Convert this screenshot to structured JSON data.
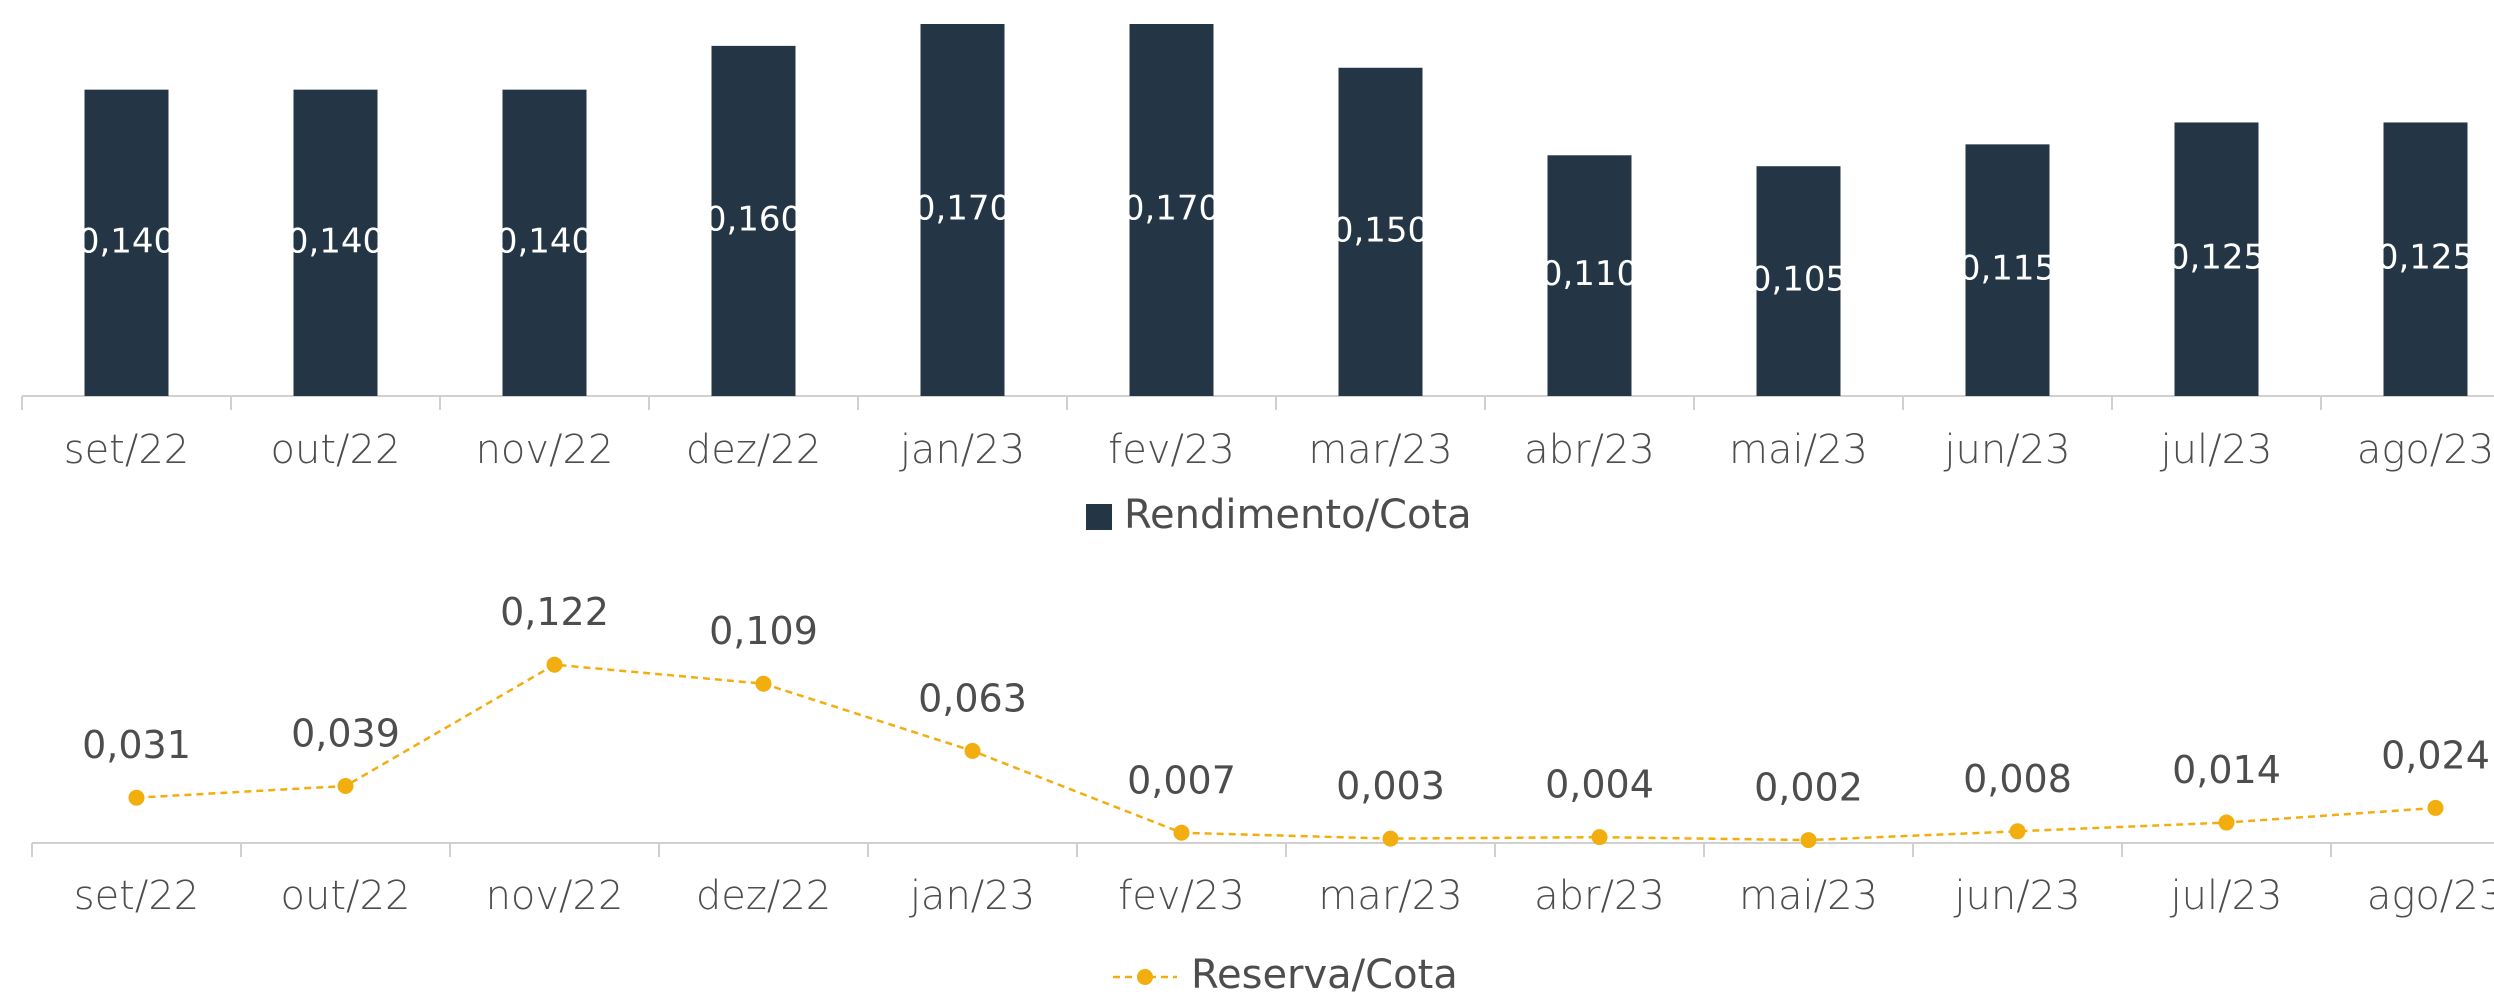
{
  "chart_data": [
    {
      "type": "bar",
      "categories": [
        "set/22",
        "out/22",
        "nov/22",
        "dez/22",
        "jan/23",
        "fev/23",
        "mar/23",
        "abr/23",
        "mai/23",
        "jun/23",
        "jul/23",
        "ago/23"
      ],
      "series": [
        {
          "name": "Rendimento/Cota",
          "color": "#243645",
          "values": [
            0.14,
            0.14,
            0.14,
            0.16,
            0.17,
            0.17,
            0.15,
            0.11,
            0.105,
            0.115,
            0.125,
            0.125
          ],
          "value_labels": [
            "0,140",
            "0,140",
            "0,140",
            "0,160",
            "0,170",
            "0,170",
            "0,150",
            "0,110",
            "0,105",
            "0,115",
            "0,125",
            "0,125"
          ]
        }
      ],
      "ylim": [
        0,
        0.17
      ],
      "legend": "bottom"
    },
    {
      "type": "line",
      "categories": [
        "set/22",
        "out/22",
        "nov/22",
        "dez/22",
        "jan/23",
        "fev/23",
        "mar/23",
        "abr/23",
        "mai/23",
        "jun/23",
        "jul/23",
        "ago/23"
      ],
      "series": [
        {
          "name": "Reserva/Cota",
          "color": "#f2ae0f",
          "values": [
            0.031,
            0.039,
            0.122,
            0.109,
            0.063,
            0.007,
            0.003,
            0.004,
            0.002,
            0.008,
            0.014,
            0.024
          ],
          "value_labels": [
            "0,031",
            "0,039",
            "0,122",
            "0,109",
            "0,063",
            "0,007",
            "0,003",
            "0,004",
            "0,002",
            "0,008",
            "0,014",
            "0,024"
          ]
        }
      ],
      "ylim": [
        0,
        0.13
      ],
      "dashed": true,
      "legend": "bottom"
    }
  ]
}
